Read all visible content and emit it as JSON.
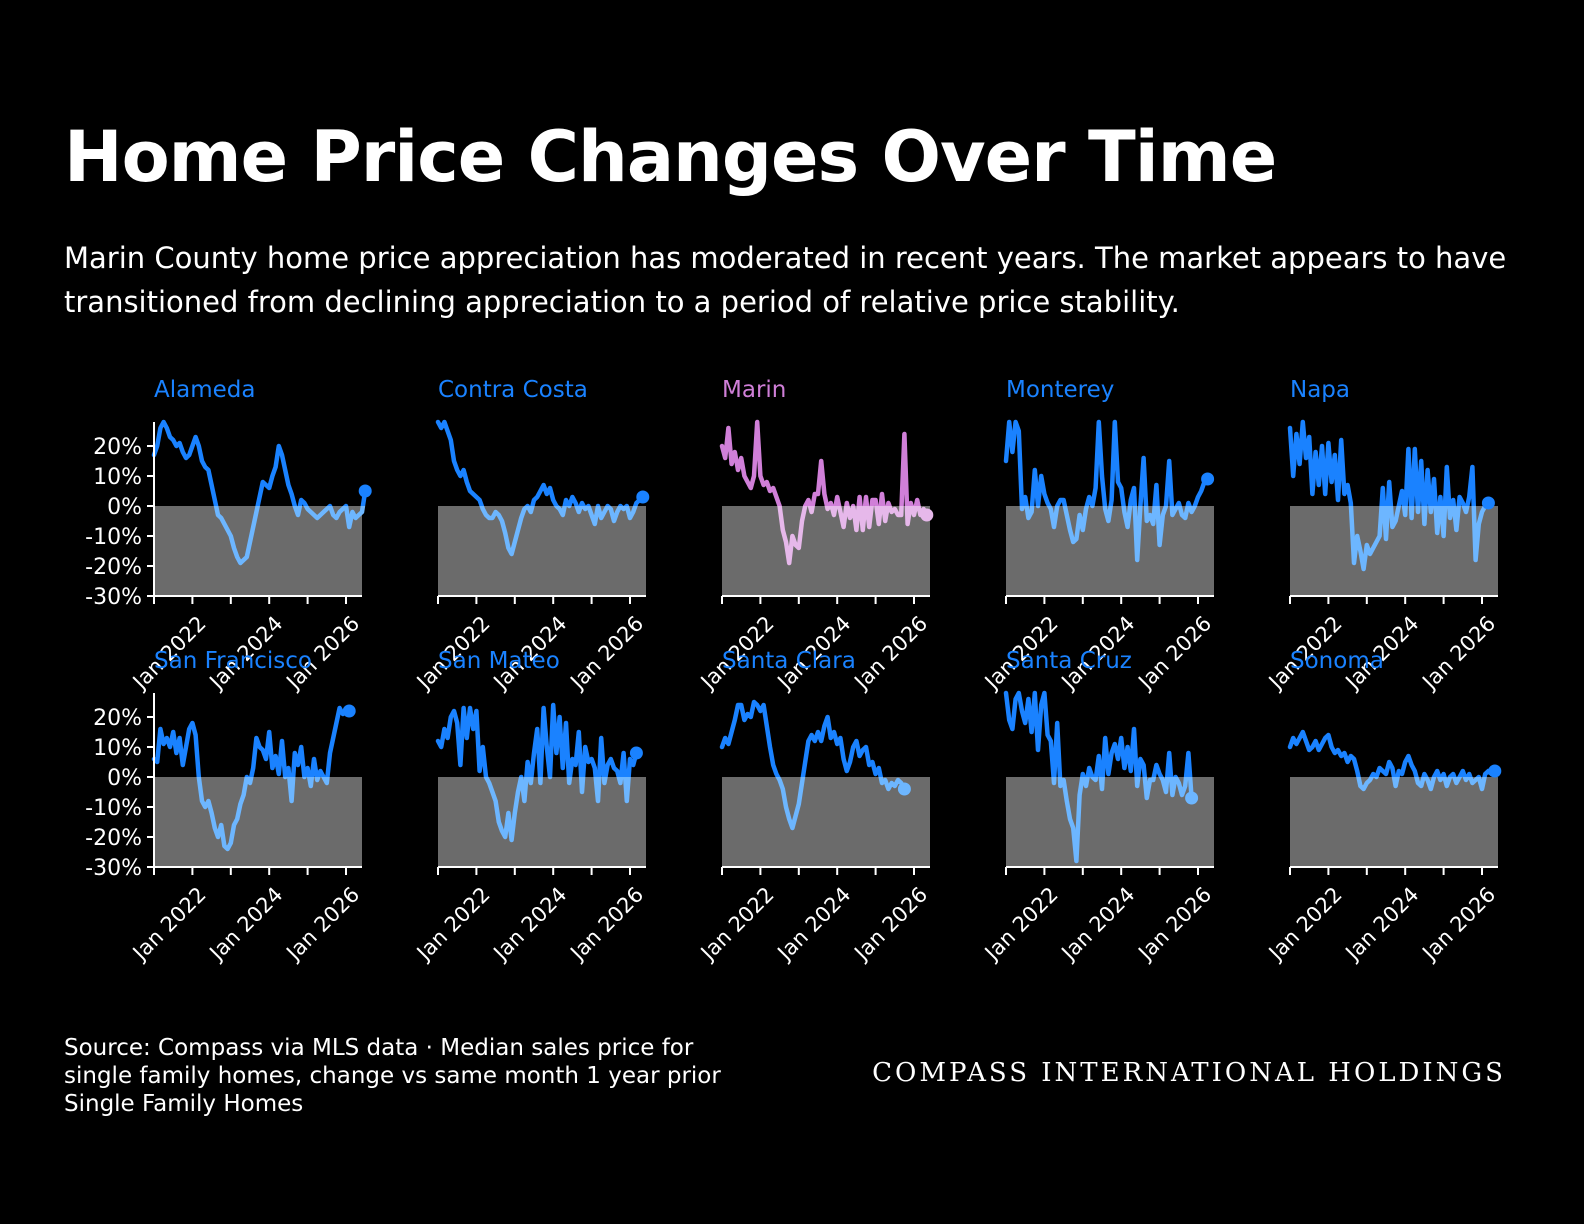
{
  "header": {
    "title": "Home Price Changes Over Time",
    "subtitle": "Marin County home price appreciation has moderated in recent years. The market appears to have transitioned from declining appreciation to a period of relative price stability."
  },
  "footer": {
    "source_lines": [
      "Source: Compass via MLS data · Median sales price for",
      "single family homes, change vs same month 1 year prior",
      "Single Family Homes"
    ],
    "brand": "COMPASS INTERNATIONAL HOLDINGS"
  },
  "colors": {
    "background": "#000000",
    "line_default": "#1a82ff",
    "line_negative_default": "#6db6ff",
    "line_highlight": "#d07fd8",
    "line_negative_highlight": "#e6b8ea",
    "negative_band": "#6b6b6b"
  },
  "chart_data": {
    "type": "line",
    "layout": "small-multiples",
    "highlight": "Marin",
    "x_range": [
      "2021-01",
      "2026-06"
    ],
    "x_tick_labels": [
      "Jan 2022",
      "Jan 2024",
      "Jan 2026"
    ],
    "y_tick_labels": [
      "20%",
      "10%",
      "0%",
      "-10%",
      "-20%",
      "-30%"
    ],
    "ylim": [
      -30,
      28
    ],
    "series": [
      {
        "name": "Alameda",
        "start": "2021-01",
        "values": [
          17,
          20,
          26,
          28,
          26,
          23,
          22,
          20,
          21,
          18,
          16,
          17,
          20,
          23,
          20,
          15,
          13,
          12,
          7,
          2,
          -3,
          -4,
          -6,
          -8,
          -10,
          -14,
          -17,
          -19,
          -18,
          -17,
          -12,
          -7,
          -2,
          3,
          8,
          7,
          6,
          10,
          13,
          20,
          17,
          12,
          7,
          4,
          0,
          -3,
          2,
          1,
          -1,
          -2,
          -3,
          -4,
          -3,
          -2,
          -1,
          0,
          -3,
          -4,
          -2,
          -1,
          0,
          -7,
          -2,
          -4,
          -3,
          -2,
          5
        ]
      },
      {
        "name": "Contra Costa",
        "start": "2021-01",
        "values": [
          28,
          26,
          28,
          25,
          22,
          15,
          12,
          10,
          12,
          8,
          5,
          4,
          3,
          2,
          -1,
          -3,
          -4,
          -4,
          -2,
          -3,
          -5,
          -9,
          -14,
          -16,
          -12,
          -8,
          -4,
          -1,
          0,
          -2,
          2,
          3,
          5,
          7,
          4,
          6,
          2,
          0,
          -1,
          -3,
          2,
          0,
          3,
          1,
          -2,
          1,
          -1,
          0,
          -3,
          -6,
          0,
          -4,
          -2,
          0,
          -1,
          -5,
          -2,
          0,
          -1,
          0,
          -4,
          -2,
          1,
          2,
          3
        ]
      },
      {
        "name": "Marin",
        "start": "2021-01",
        "values": [
          20,
          16,
          26,
          14,
          18,
          12,
          16,
          10,
          8,
          6,
          10,
          28,
          10,
          7,
          8,
          5,
          6,
          3,
          0,
          -8,
          -12,
          -19,
          -10,
          -13,
          -14,
          -5,
          0,
          2,
          -2,
          4,
          4,
          15,
          4,
          -1,
          1,
          -3,
          3,
          -2,
          -7,
          1,
          -4,
          0,
          -8,
          3,
          -8,
          3,
          -7,
          2,
          2,
          -6,
          4,
          -5,
          1,
          -2,
          -1,
          -3,
          -3,
          24,
          -6,
          1,
          -3,
          2,
          -3,
          -1,
          -3
        ]
      },
      {
        "name": "Monterey",
        "start": "2021-01",
        "values": [
          15,
          28,
          18,
          28,
          25,
          -1,
          3,
          -4,
          -2,
          12,
          0,
          10,
          4,
          1,
          -1,
          -7,
          0,
          2,
          2,
          -3,
          -8,
          -12,
          -11,
          -3,
          -8,
          -1,
          3,
          0,
          6,
          28,
          10,
          -1,
          -5,
          2,
          28,
          8,
          6,
          -2,
          -7,
          2,
          6,
          -18,
          0,
          16,
          -5,
          -3,
          -6,
          7,
          -13,
          -3,
          0,
          15,
          -3,
          -1,
          1,
          -3,
          -4,
          1,
          -2,
          0,
          3,
          5,
          8,
          9
        ]
      },
      {
        "name": "Napa",
        "start": "2021-01",
        "values": [
          26,
          10,
          24,
          14,
          28,
          16,
          23,
          4,
          18,
          7,
          20,
          4,
          21,
          8,
          17,
          2,
          22,
          4,
          7,
          1,
          -19,
          -10,
          -15,
          -21,
          -13,
          -16,
          -14,
          -12,
          -10,
          6,
          -11,
          8,
          -7,
          -5,
          0,
          5,
          -3,
          19,
          -4,
          19,
          -2,
          15,
          -6,
          12,
          -2,
          9,
          -9,
          3,
          -10,
          13,
          -4,
          2,
          -8,
          3,
          1,
          -2,
          3,
          13,
          -18,
          -6,
          -2,
          0,
          1
        ]
      },
      {
        "name": "San Francisco",
        "start": "2021-01",
        "values": [
          6,
          5,
          16,
          11,
          13,
          10,
          15,
          8,
          13,
          4,
          10,
          16,
          18,
          14,
          0,
          -8,
          -10,
          -8,
          -12,
          -17,
          -20,
          -16,
          -23,
          -24,
          -22,
          -16,
          -14,
          -9,
          -6,
          0,
          -2,
          3,
          13,
          10,
          9,
          6,
          15,
          3,
          7,
          1,
          12,
          0,
          3,
          -8,
          8,
          4,
          10,
          0,
          3,
          -3,
          6,
          -1,
          2,
          0,
          -2,
          8,
          13,
          18,
          23,
          21,
          22,
          22
        ]
      },
      {
        "name": "San Mateo",
        "start": "2021-01",
        "values": [
          12,
          10,
          16,
          13,
          20,
          22,
          18,
          4,
          23,
          13,
          23,
          16,
          22,
          2,
          10,
          0,
          -2,
          -5,
          -8,
          -15,
          -18,
          -20,
          -12,
          -21,
          -12,
          -5,
          0,
          -8,
          5,
          -2,
          8,
          16,
          -2,
          23,
          10,
          0,
          24,
          8,
          20,
          3,
          18,
          -2,
          6,
          4,
          15,
          -5,
          10,
          5,
          6,
          3,
          -8,
          13,
          -2,
          4,
          6,
          3,
          2,
          -2,
          8,
          -8,
          6,
          4,
          8
        ]
      },
      {
        "name": "Santa Clara",
        "start": "2021-01",
        "values": [
          10,
          13,
          11,
          15,
          19,
          24,
          24,
          19,
          21,
          20,
          25,
          24,
          22,
          24,
          17,
          10,
          4,
          1,
          -1,
          -4,
          -10,
          -14,
          -17,
          -13,
          -9,
          -2,
          5,
          12,
          14,
          12,
          15,
          12,
          17,
          20,
          13,
          15,
          11,
          13,
          6,
          2,
          5,
          10,
          12,
          7,
          9,
          10,
          4,
          5,
          1,
          3,
          -2,
          -1,
          -4,
          -2,
          -3,
          -1,
          -2,
          -4
        ]
      },
      {
        "name": "Santa Cruz",
        "start": "2021-01",
        "values": [
          28,
          19,
          16,
          26,
          28,
          22,
          18,
          26,
          15,
          28,
          9,
          24,
          28,
          14,
          12,
          -2,
          18,
          -3,
          -1,
          -8,
          -14,
          -17,
          -28,
          -6,
          1,
          -3,
          3,
          0,
          -1,
          7,
          -4,
          13,
          1,
          8,
          11,
          6,
          13,
          3,
          10,
          2,
          16,
          -3,
          6,
          4,
          -7,
          -1,
          -1,
          4,
          1,
          -1,
          -5,
          8,
          -6,
          0,
          -2,
          -6,
          -3,
          8,
          -7
        ]
      },
      {
        "name": "Sonoma",
        "start": "2021-01",
        "values": [
          10,
          13,
          11,
          13,
          15,
          12,
          9,
          10,
          12,
          9,
          11,
          13,
          14,
          10,
          8,
          9,
          7,
          8,
          5,
          7,
          6,
          2,
          -3,
          -4,
          -2,
          -1,
          1,
          0,
          3,
          2,
          1,
          5,
          3,
          -3,
          2,
          1,
          5,
          7,
          4,
          2,
          -2,
          -3,
          1,
          -1,
          -4,
          0,
          2,
          -1,
          1,
          -3,
          0,
          1,
          -2,
          0,
          2,
          -1,
          1,
          -2,
          -1,
          0,
          -4,
          1,
          2,
          1,
          2
        ]
      }
    ]
  }
}
